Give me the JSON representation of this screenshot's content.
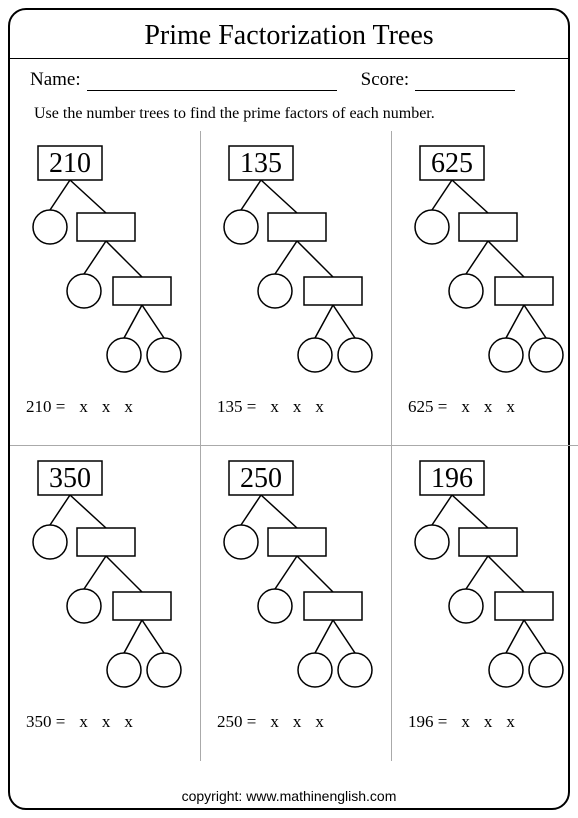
{
  "title": "Prime Factorization Trees",
  "name_label": "Name:",
  "score_label": "Score:",
  "instruction": "Use the number trees to find the prime factors of each number.",
  "operator": "x",
  "equals": "=",
  "problems": [
    {
      "n": "210",
      "eq_left": "210"
    },
    {
      "n": "135",
      "eq_left": "135"
    },
    {
      "n": "625",
      "eq_left": "625"
    },
    {
      "n": "350",
      "eq_left": "350"
    },
    {
      "n": "250",
      "eq_left": "250"
    },
    {
      "n": "196",
      "eq_left": "196"
    }
  ],
  "copyright": "copyright:   www.mathinenglish.com",
  "style": {
    "stroke": "#000000",
    "stroke_width": 1.5,
    "circle_r": 17,
    "rect_w": 58,
    "rect_h": 28,
    "root_rect_w": 64,
    "root_rect_h": 34
  }
}
